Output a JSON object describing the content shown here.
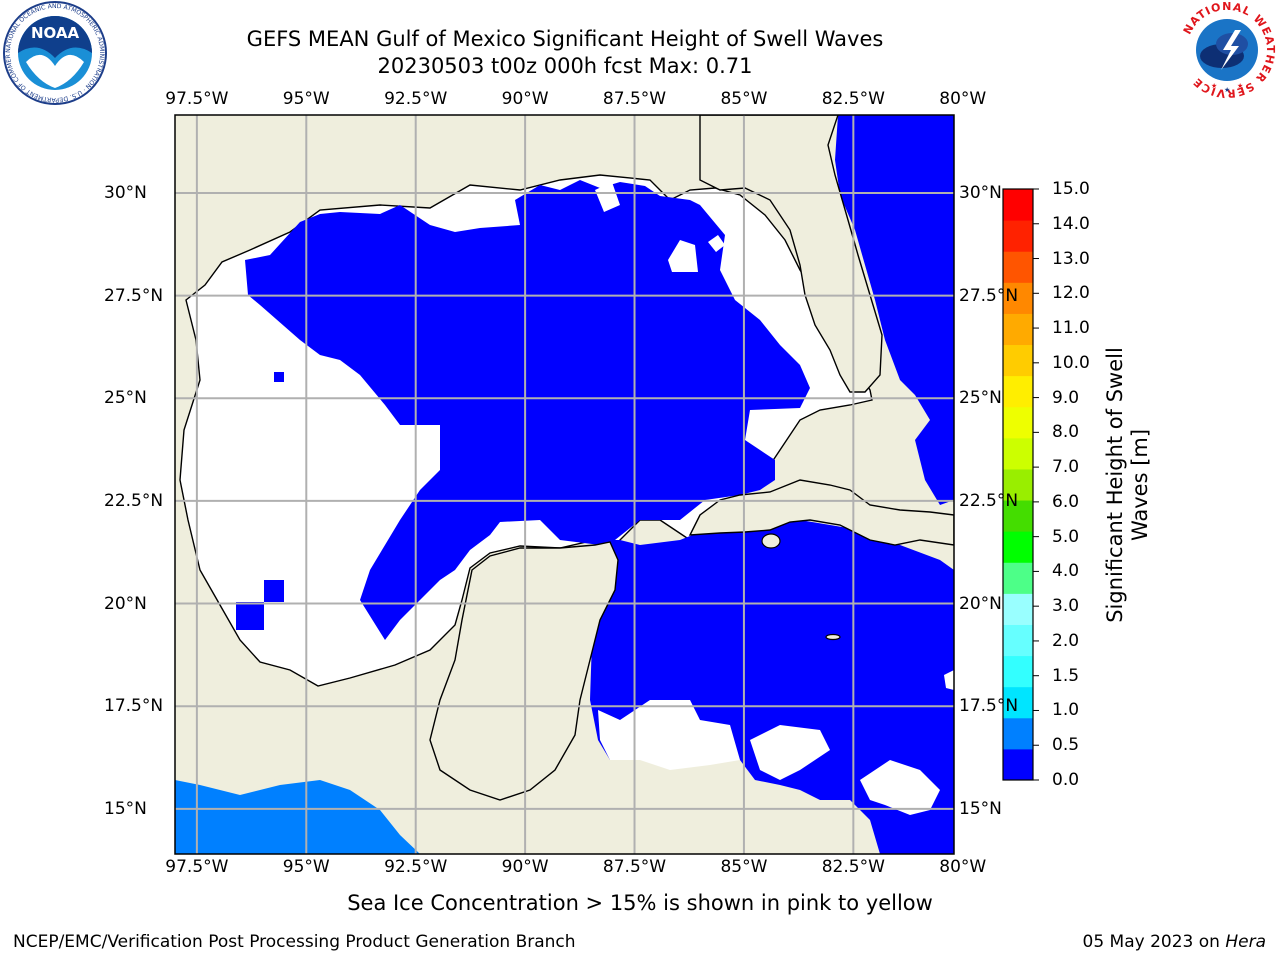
{
  "title": {
    "line1": "GEFS MEAN Gulf of Mexico Significant Height of Swell Waves",
    "line2": "20230503 t00z 000h fcst   Max: 0.71"
  },
  "map": {
    "lon_range": [
      -98,
      -80.2
    ],
    "lat_range": [
      13.9,
      31.9
    ],
    "lon_ticks": [
      "97.5°W",
      "95°W",
      "92.5°W",
      "90°W",
      "87.5°W",
      "85°W",
      "82.5°W",
      "80°W"
    ],
    "lat_ticks_left": [
      "30°N",
      "27.5°N",
      "25°N",
      "22.5°N",
      "20°N",
      "17.5°N",
      "15°N"
    ],
    "lat_ticks_right": [
      "30°N",
      "27.5°N",
      "25°N",
      "22.5°N",
      "20°N",
      "17.5°N",
      "15°N"
    ],
    "gridlines": true,
    "land_color": "#efeedd",
    "ocean_low_color": "#0000ff",
    "no_swell_color": "#ffffff",
    "coastline_color": "#000000"
  },
  "colorbar": {
    "label": "Significant Height of Swell Waves [m]",
    "label_line1": "Significant Height of Swell",
    "label_line2": "Waves [m]",
    "ticks": [
      "0.0",
      "0.5",
      "1.0",
      "1.5",
      "2.0",
      "3.0",
      "4.0",
      "5.0",
      "6.0",
      "7.0",
      "8.0",
      "9.0",
      "10.0",
      "11.0",
      "12.0",
      "13.0",
      "14.0",
      "15.0"
    ],
    "colors": [
      "#0000ff",
      "#0080ff",
      "#00e5ff",
      "#33ffff",
      "#66ffff",
      "#99ffff",
      "#4dff88",
      "#00ff00",
      "#44dd00",
      "#99ee00",
      "#ccff00",
      "#eeff00",
      "#ffee00",
      "#ffcc00",
      "#ffaa00",
      "#ff8800",
      "#ff5500",
      "#ff2200",
      "#ff0000"
    ]
  },
  "subtitle": "Sea Ice Concentration > 15% is shown in pink to yellow",
  "footer": {
    "left": "NCEP/EMC/Verification Post Processing Product Generation Branch",
    "date": "05 May 2023 on ",
    "machine": "Hera"
  },
  "logos": {
    "left": "NOAA",
    "left_ring": "NATIONAL OCEANIC AND ATMOSPHERIC ADMINISTRATION · U.S. DEPARTMENT OF COMMERCE ·",
    "right_ring": "NATIONAL WEATHER SERVICE"
  }
}
